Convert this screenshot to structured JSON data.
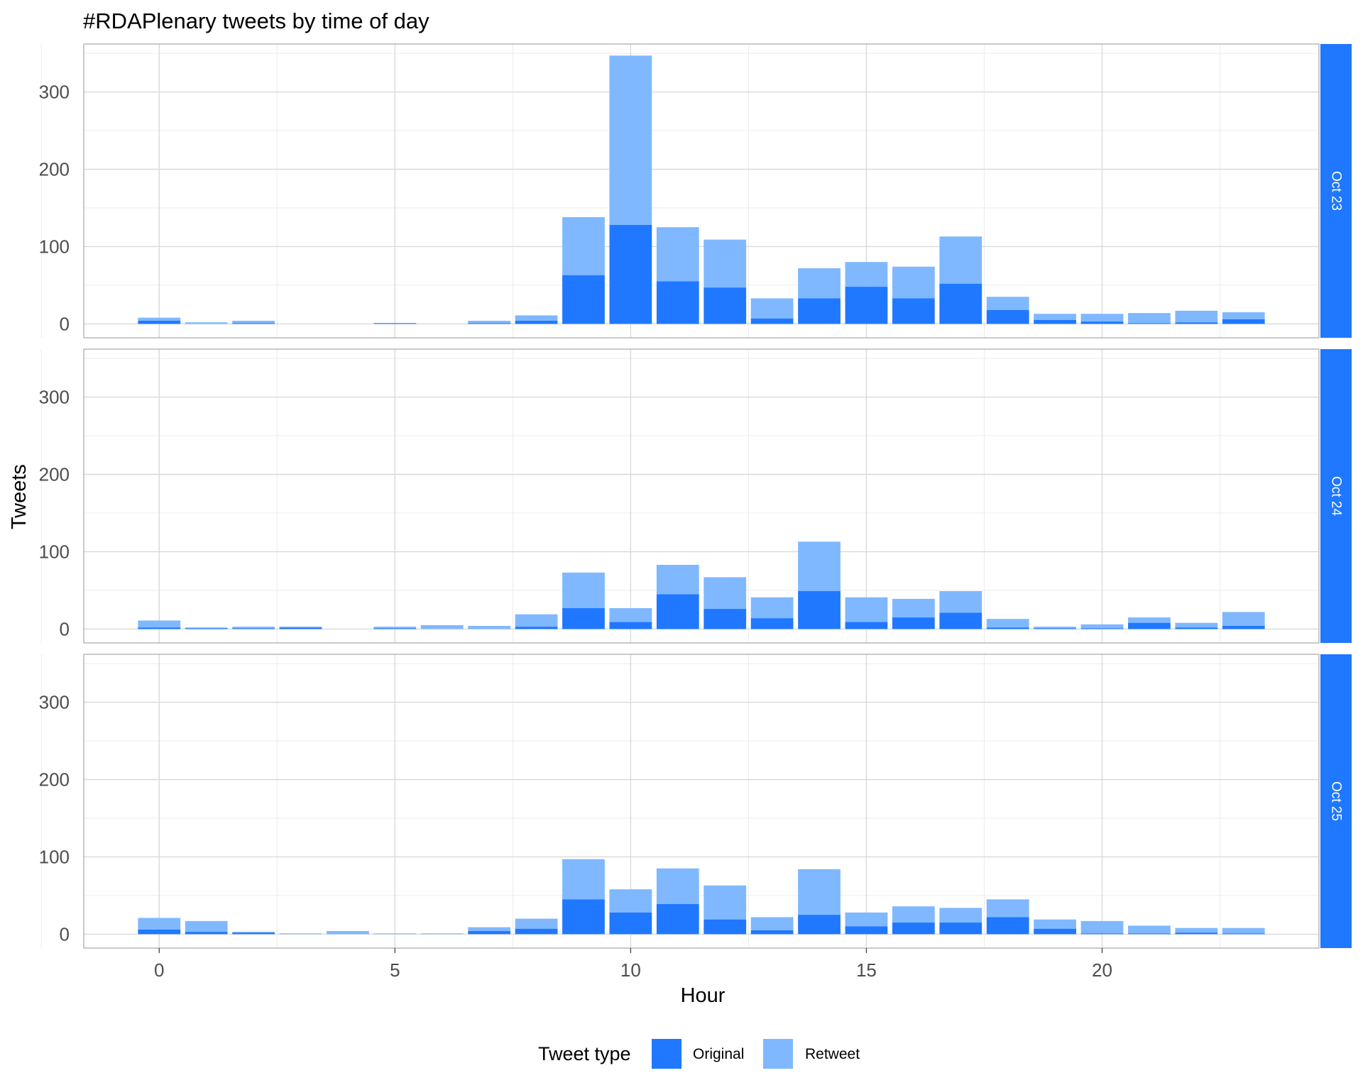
{
  "chart_data": {
    "type": "bar",
    "stacked": true,
    "title": "#RDAPlenary tweets by time of day",
    "xlabel": "Hour",
    "ylabel": "Tweets",
    "xlim": [
      -1.6,
      24.6
    ],
    "ylim": [
      -18,
      362
    ],
    "x_ticks": [
      0,
      5,
      10,
      15,
      20
    ],
    "y_ticks": [
      0,
      100,
      200,
      300
    ],
    "grid": true,
    "legend": {
      "title": "Tweet type",
      "position": "bottom"
    },
    "colors": {
      "Original": "#1f78ff",
      "Retweet": "#7fb8ff",
      "strip": "#1f78ff"
    },
    "hours": [
      0,
      1,
      2,
      3,
      4,
      5,
      6,
      7,
      8,
      9,
      10,
      11,
      12,
      13,
      14,
      15,
      16,
      17,
      18,
      19,
      20,
      21,
      22,
      23
    ],
    "panels": [
      {
        "label": "Oct 23",
        "series": [
          {
            "name": "Original",
            "values": [
              4,
              0,
              1,
              0,
              0,
              1,
              0,
              1,
              4,
              63,
              128,
              55,
              47,
              7,
              33,
              48,
              33,
              52,
              18,
              5,
              3,
              1,
              2,
              6
            ]
          },
          {
            "name": "Retweet",
            "values": [
              4,
              2,
              3,
              0,
              0,
              0,
              0,
              3,
              7,
              75,
              219,
              70,
              62,
              26,
              39,
              32,
              41,
              61,
              17,
              8,
              10,
              13,
              15,
              9
            ]
          }
        ]
      },
      {
        "label": "Oct 24",
        "series": [
          {
            "name": "Original",
            "values": [
              2,
              1,
              1,
              2,
              0,
              1,
              0,
              0,
              3,
              27,
              9,
              45,
              26,
              14,
              49,
              9,
              15,
              21,
              2,
              1,
              1,
              8,
              2,
              4
            ]
          },
          {
            "name": "Retweet",
            "values": [
              9,
              1,
              2,
              1,
              0,
              2,
              5,
              4,
              16,
              46,
              18,
              38,
              41,
              27,
              64,
              32,
              24,
              28,
              11,
              2,
              5,
              7,
              6,
              18
            ]
          }
        ]
      },
      {
        "label": "Oct 25",
        "series": [
          {
            "name": "Original",
            "values": [
              6,
              3,
              2,
              0,
              0,
              0,
              0,
              4,
              7,
              45,
              28,
              39,
              19,
              5,
              25,
              10,
              15,
              15,
              22,
              7,
              1,
              1,
              2,
              1
            ]
          },
          {
            "name": "Retweet",
            "values": [
              15,
              14,
              1,
              1,
              4,
              1,
              1,
              5,
              13,
              52,
              30,
              46,
              44,
              17,
              59,
              18,
              21,
              19,
              23,
              12,
              16,
              10,
              6,
              7
            ]
          }
        ]
      }
    ]
  }
}
